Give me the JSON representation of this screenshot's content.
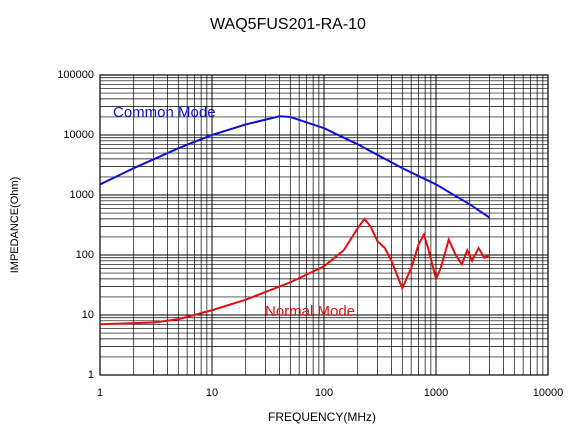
{
  "chart_data": {
    "type": "line",
    "title": "WAQ5FUS201-RA-10",
    "x_label": "FREQUENCY(MHz)",
    "y_label": "IMPEDANCE(Ohm)",
    "x_log": true,
    "y_log": true,
    "grid": true,
    "xlim": [
      1,
      10000
    ],
    "ylim": [
      1,
      100000
    ],
    "xticks": [
      1,
      10,
      100,
      1000,
      10000
    ],
    "yticks": [
      1,
      10,
      100,
      1000,
      10000,
      100000
    ],
    "xminorticks": [
      2,
      3,
      4,
      5,
      6,
      7,
      8,
      9,
      20,
      30,
      40,
      50,
      60,
      70,
      80,
      90,
      200,
      300,
      400,
      500,
      600,
      700,
      800,
      900,
      2000,
      3000,
      4000,
      5000,
      6000,
      7000,
      8000,
      9000
    ],
    "yminorticks": [
      2,
      3,
      4,
      5,
      6,
      7,
      8,
      9,
      20,
      30,
      40,
      50,
      60,
      70,
      80,
      90,
      200,
      300,
      400,
      500,
      600,
      700,
      800,
      900,
      2000,
      3000,
      4000,
      5000,
      6000,
      7000,
      8000,
      9000,
      20000,
      30000,
      40000,
      50000,
      60000,
      70000,
      80000,
      90000
    ],
    "series": [
      {
        "name": "Common Mode",
        "color": "#1010d0",
        "x": [
          1,
          2,
          5,
          10,
          20,
          40,
          50,
          100,
          200,
          500,
          1000,
          2000,
          3000
        ],
        "values": [
          1500,
          2800,
          6000,
          10000,
          15000,
          20500,
          20000,
          13000,
          7000,
          2800,
          1500,
          700,
          420
        ]
      },
      {
        "name": "Normal Mode",
        "color": "#e01010",
        "x": [
          1,
          3,
          5,
          10,
          20,
          50,
          100,
          150,
          200,
          230,
          260,
          300,
          350,
          400,
          500,
          600,
          700,
          780,
          850,
          1000,
          1100,
          1300,
          1500,
          1700,
          1900,
          2100,
          2400,
          2700,
          3000
        ],
        "values": [
          7,
          7.5,
          8.5,
          12,
          18,
          35,
          65,
          120,
          280,
          400,
          300,
          170,
          130,
          80,
          28,
          60,
          150,
          220,
          130,
          40,
          60,
          180,
          100,
          70,
          120,
          80,
          130,
          90,
          100
        ]
      }
    ]
  }
}
